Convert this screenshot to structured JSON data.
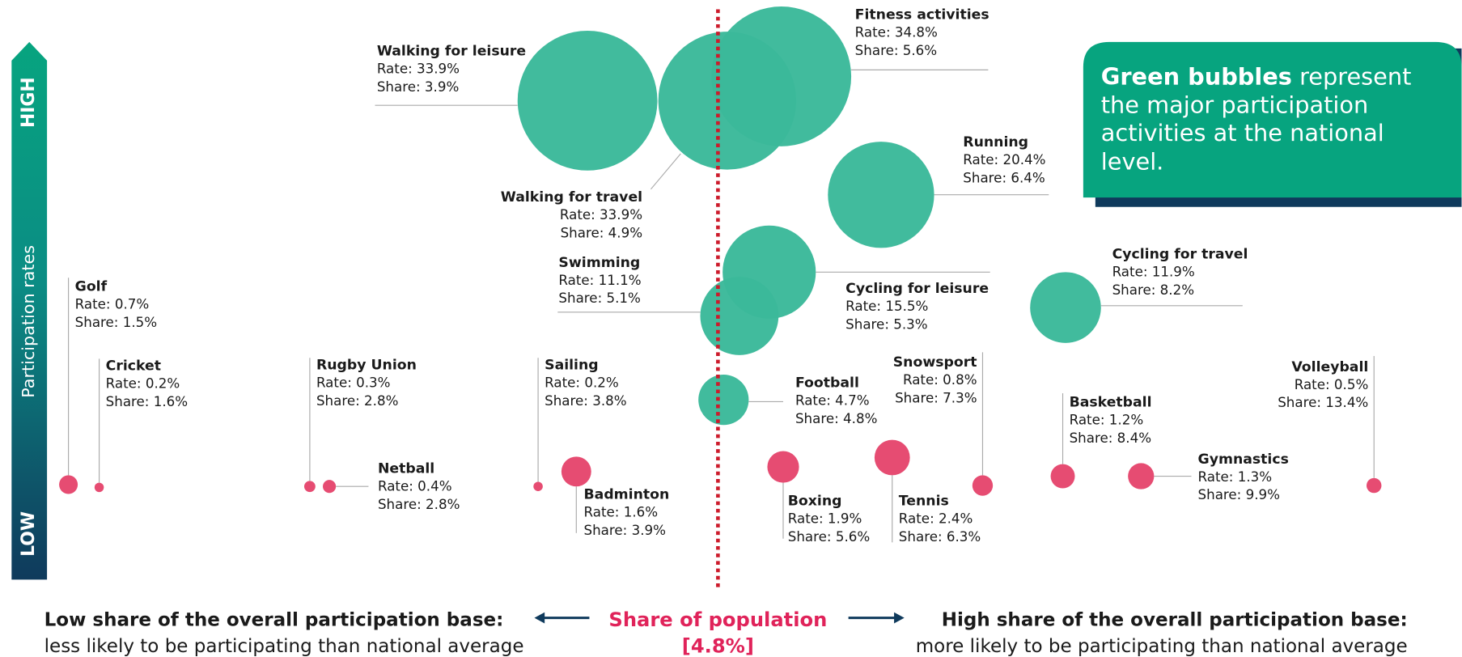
{
  "axis": {
    "high": "HIGH",
    "label": "Participation rates",
    "low": "LOW"
  },
  "callout": {
    "bold": "Green bubbles",
    "text": [
      "represent",
      "the major participation",
      "activities at the national",
      "level."
    ]
  },
  "footer": {
    "left_title": "Low share of the overall participation base:",
    "left_text": "less likely to be participating than national average",
    "center_title": "Share of population",
    "center_value": "[4.8%]",
    "right_title": "High share of the overall participation base:",
    "right_text": "more likely to be participating than national average"
  },
  "activities": [
    {
      "name": "Walking for leisure",
      "rate": "Rate: 33.9%",
      "share": "Share: 3.9%",
      "group": "major"
    },
    {
      "name": "Walking for travel",
      "rate": "Rate: 33.9%",
      "share": "Share: 4.9%",
      "group": "major"
    },
    {
      "name": "Fitness activities",
      "rate": "Rate: 34.8%",
      "share": "Share: 5.6%",
      "group": "major"
    },
    {
      "name": "Running",
      "rate": "Rate: 20.4%",
      "share": "Share: 6.4%",
      "group": "major"
    },
    {
      "name": "Cycling for leisure",
      "rate": "Rate: 15.5%",
      "share": "Share: 5.3%",
      "group": "major"
    },
    {
      "name": "Swimming",
      "rate": "Rate: 11.1%",
      "share": "Share: 5.1%",
      "group": "major"
    },
    {
      "name": "Cycling for travel",
      "rate": "Rate: 11.9%",
      "share": "Share: 8.2%",
      "group": "major"
    },
    {
      "name": "Football",
      "rate": "Rate: 4.7%",
      "share": "Share: 4.8%",
      "group": "major"
    },
    {
      "name": "Golf",
      "rate": "Rate: 0.7%",
      "share": "Share: 1.5%",
      "group": "minor"
    },
    {
      "name": "Cricket",
      "rate": "Rate: 0.2%",
      "share": "Share: 1.6%",
      "group": "minor"
    },
    {
      "name": "Rugby Union",
      "rate": "Rate: 0.3%",
      "share": "Share: 2.8%",
      "group": "minor"
    },
    {
      "name": "Netball",
      "rate": "Rate: 0.4%",
      "share": "Share: 2.8%",
      "group": "minor"
    },
    {
      "name": "Sailing",
      "rate": "Rate: 0.2%",
      "share": "Share: 3.8%",
      "group": "minor"
    },
    {
      "name": "Badminton",
      "rate": "Rate: 1.6%",
      "share": "Share: 3.9%",
      "group": "minor"
    },
    {
      "name": "Boxing",
      "rate": "Rate: 1.9%",
      "share": "Share: 5.6%",
      "group": "minor"
    },
    {
      "name": "Tennis",
      "rate": "Rate: 2.4%",
      "share": "Share: 6.3%",
      "group": "minor"
    },
    {
      "name": "Snowsport",
      "rate": "Rate: 0.8%",
      "share": "Share: 7.3%",
      "group": "minor"
    },
    {
      "name": "Basketball",
      "rate": "Rate: 1.2%",
      "share": "Share: 8.4%",
      "group": "minor"
    },
    {
      "name": "Gymnastics",
      "rate": "Rate: 1.3%",
      "share": "Share: 9.9%",
      "group": "minor"
    },
    {
      "name": "Volleyball",
      "rate": "Rate: 0.5%",
      "share": "Share: 13.4%",
      "group": "minor"
    }
  ]
}
